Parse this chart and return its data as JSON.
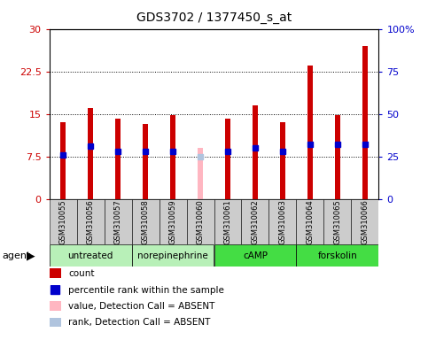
{
  "title": "GDS3702 / 1377450_s_at",
  "samples": [
    "GSM310055",
    "GSM310056",
    "GSM310057",
    "GSM310058",
    "GSM310059",
    "GSM310060",
    "GSM310061",
    "GSM310062",
    "GSM310063",
    "GSM310064",
    "GSM310065",
    "GSM310066"
  ],
  "counts": [
    13.5,
    16.0,
    14.2,
    13.2,
    14.8,
    null,
    14.2,
    16.5,
    13.5,
    23.5,
    14.8,
    27.0
  ],
  "ranks_pct": [
    26.0,
    31.0,
    28.0,
    28.0,
    28.0,
    null,
    28.0,
    30.0,
    28.0,
    32.0,
    32.0,
    32.0
  ],
  "absent_count": [
    null,
    null,
    null,
    null,
    null,
    9.0,
    null,
    null,
    null,
    null,
    null,
    null
  ],
  "absent_rank_pct": [
    null,
    null,
    null,
    null,
    null,
    25.0,
    null,
    null,
    null,
    null,
    null,
    null
  ],
  "ylim_left": [
    0,
    30
  ],
  "ylim_right": [
    0,
    100
  ],
  "yticks_left": [
    0,
    7.5,
    15,
    22.5,
    30
  ],
  "yticks_right": [
    0,
    25,
    50,
    75,
    100
  ],
  "ytick_labels_left": [
    "0",
    "7.5",
    "15",
    "22.5",
    "30"
  ],
  "ytick_labels_right": [
    "0",
    "25",
    "50",
    "75",
    "100%"
  ],
  "hlines": [
    7.5,
    15,
    22.5
  ],
  "bar_color": "#cc0000",
  "rank_color": "#0000cc",
  "absent_bar_color": "#ffb6c1",
  "absent_rank_color": "#b0c4de",
  "bar_width": 0.18,
  "rank_marker_size": 4,
  "group_data": [
    {
      "label": "untreated",
      "start": 0,
      "end": 2,
      "color": "#b8f0b8"
    },
    {
      "label": "norepinephrine",
      "start": 3,
      "end": 5,
      "color": "#b8f0b8"
    },
    {
      "label": "cAMP",
      "start": 6,
      "end": 8,
      "color": "#44dd44"
    },
    {
      "label": "forskolin",
      "start": 9,
      "end": 11,
      "color": "#44dd44"
    }
  ],
  "legend_items": [
    {
      "color": "#cc0000",
      "label": "count",
      "marker": "square"
    },
    {
      "color": "#0000cc",
      "label": "percentile rank within the sample",
      "marker": "square_dot"
    },
    {
      "color": "#ffb6c1",
      "label": "value, Detection Call = ABSENT",
      "marker": "square"
    },
    {
      "color": "#b0c4de",
      "label": "rank, Detection Call = ABSENT",
      "marker": "square"
    }
  ],
  "agent_label": "agent",
  "tick_label_color_left": "#cc0000",
  "tick_label_color_right": "#0000cc",
  "bg_color": "#cccccc",
  "plot_bg": "#ffffff"
}
